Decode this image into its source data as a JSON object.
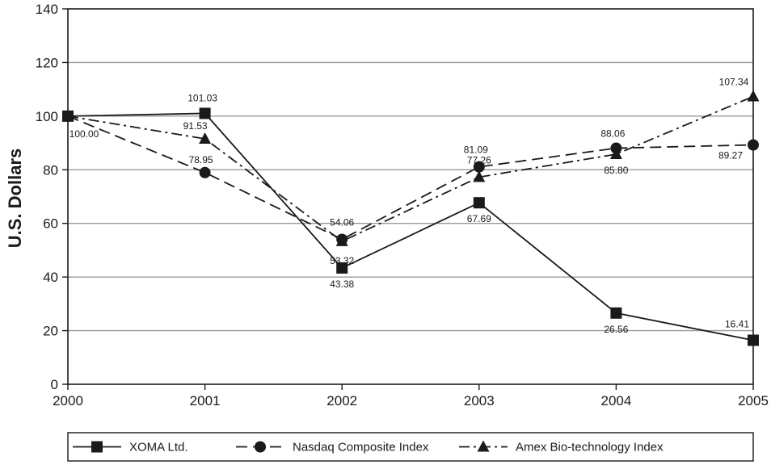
{
  "chart_data": {
    "type": "line",
    "title": "",
    "xlabel": "",
    "ylabel": "U.S. Dollars",
    "x": [
      "2000",
      "2001",
      "2002",
      "2003",
      "2004",
      "2005"
    ],
    "ylim": [
      0,
      140
    ],
    "yticks": [
      0,
      20,
      40,
      60,
      80,
      100,
      120,
      140
    ],
    "grid": "horizontal",
    "legend_position": "bottom",
    "series": [
      {
        "name": "XOMA Ltd.",
        "marker": "square",
        "line_style": "solid",
        "values": [
          100.0,
          101.03,
          43.38,
          67.69,
          26.56,
          16.41
        ],
        "labels": [
          "100.00",
          "101.03",
          "43.38",
          "67.69",
          "26.56",
          "16.41"
        ]
      },
      {
        "name": "Nasdaq Composite Index",
        "marker": "circle",
        "line_style": "dashed",
        "values": [
          100.0,
          78.95,
          54.06,
          81.09,
          88.06,
          89.27
        ],
        "labels": [
          "",
          "78.95",
          "54.06",
          "81.09",
          "88.06",
          "89.27"
        ]
      },
      {
        "name": "Amex Bio-technology Index",
        "marker": "triangle",
        "line_style": "dash-dot",
        "values": [
          100.0,
          91.53,
          53.32,
          77.26,
          85.8,
          107.34
        ],
        "labels": [
          "",
          "91.53",
          "53.32",
          "77.26",
          "85.80",
          "107.34"
        ]
      }
    ],
    "colors": {
      "line": "#1a1a1a",
      "grid": "#999999",
      "background": "#ffffff"
    }
  }
}
